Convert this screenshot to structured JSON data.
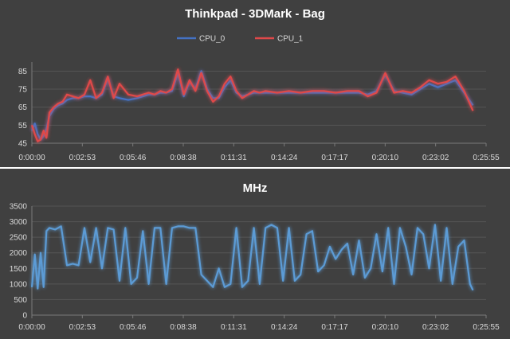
{
  "chart_data": [
    {
      "type": "line",
      "title": "Thinkpad - 3DMark - Bag",
      "xlabel": "",
      "ylabel": "",
      "ylim": [
        45,
        90
      ],
      "yticks": [
        "45",
        "55",
        "65",
        "75",
        "85"
      ],
      "xticks": [
        "0:00:00",
        "0:02:53",
        "0:05:46",
        "0:08:38",
        "0:11:31",
        "0:14:24",
        "0:17:17",
        "0:20:10",
        "0:23:02",
        "0:25:55"
      ],
      "legend": "top-center",
      "grid": true,
      "x": [
        0,
        10,
        20,
        30,
        40,
        50,
        60,
        75,
        90,
        105,
        120,
        140,
        160,
        180,
        200,
        220,
        240,
        260,
        280,
        300,
        330,
        360,
        400,
        420,
        440,
        460,
        480,
        500,
        520,
        540,
        560,
        580,
        600,
        620,
        640,
        660,
        680,
        700,
        720,
        740,
        760,
        780,
        800,
        840,
        880,
        920,
        960,
        1000,
        1040,
        1080,
        1120,
        1150,
        1180,
        1210,
        1240,
        1270,
        1300,
        1330,
        1360,
        1390,
        1420,
        1450,
        1480,
        1510
      ],
      "series": [
        {
          "name": "CPU_0",
          "color": "#4472c4",
          "values": [
            52,
            56,
            50,
            47,
            49,
            53,
            60,
            64,
            66,
            67,
            69,
            70,
            70,
            71,
            71,
            70,
            72,
            81,
            71,
            70,
            69,
            70,
            72,
            72,
            73,
            73,
            74,
            84,
            71,
            79,
            75,
            85,
            75,
            70,
            70,
            76,
            80,
            73,
            71,
            72,
            73,
            73,
            73,
            73,
            73,
            73,
            73,
            73,
            73,
            73,
            73,
            72,
            74,
            83,
            74,
            73,
            72,
            75,
            78,
            76,
            78,
            80,
            73,
            66
          ]
        },
        {
          "name": "CPU_1",
          "color": "#e0494a",
          "values": [
            55,
            50,
            46,
            47,
            52,
            48,
            62,
            65,
            67,
            68,
            72,
            71,
            70,
            72,
            80,
            70,
            73,
            82,
            70,
            78,
            72,
            71,
            73,
            72,
            74,
            73,
            75,
            86,
            72,
            80,
            74,
            84,
            74,
            68,
            71,
            78,
            82,
            74,
            70,
            72,
            74,
            73,
            74,
            73,
            74,
            73,
            74,
            74,
            73,
            74,
            74,
            71,
            73,
            84,
            73,
            74,
            73,
            76,
            80,
            78,
            79,
            82,
            74,
            63
          ]
        }
      ]
    },
    {
      "type": "line",
      "title": "MHz",
      "xlabel": "",
      "ylabel": "",
      "ylim": [
        0,
        3500
      ],
      "yticks": [
        "0",
        "500",
        "1000",
        "1500",
        "2000",
        "2500",
        "3000",
        "3500"
      ],
      "xticks": [
        "0:00:00",
        "0:02:53",
        "0:05:46",
        "0:08:38",
        "0:11:31",
        "0:14:24",
        "0:17:17",
        "0:20:10",
        "0:23:02",
        "0:25:55"
      ],
      "legend": "none",
      "grid": true,
      "x": [
        0,
        10,
        20,
        30,
        40,
        50,
        60,
        80,
        100,
        120,
        140,
        160,
        180,
        200,
        220,
        240,
        260,
        280,
        300,
        320,
        340,
        360,
        380,
        400,
        420,
        440,
        460,
        480,
        500,
        520,
        540,
        560,
        580,
        600,
        620,
        640,
        660,
        680,
        700,
        720,
        740,
        760,
        780,
        800,
        820,
        840,
        860,
        880,
        900,
        920,
        940,
        960,
        980,
        1000,
        1020,
        1040,
        1060,
        1080,
        1100,
        1120,
        1140,
        1160,
        1180,
        1200,
        1220,
        1240,
        1260,
        1280,
        1300,
        1320,
        1340,
        1360,
        1380,
        1400,
        1420,
        1440,
        1460,
        1480,
        1500,
        1510
      ],
      "series": [
        {
          "name": "",
          "color": "#5b9bd5",
          "values": [
            900,
            1950,
            850,
            2000,
            900,
            2700,
            2800,
            2750,
            2850,
            1600,
            1650,
            1600,
            2800,
            1700,
            2800,
            1500,
            2800,
            2750,
            1100,
            2800,
            1000,
            1200,
            2700,
            1000,
            2800,
            2800,
            1000,
            2800,
            2850,
            2850,
            2800,
            2800,
            1300,
            1100,
            900,
            1500,
            900,
            1000,
            2800,
            900,
            1100,
            2800,
            1000,
            2800,
            2900,
            2800,
            1100,
            2800,
            1100,
            1300,
            2600,
            2700,
            1400,
            1600,
            2200,
            1800,
            2100,
            2300,
            1300,
            2400,
            1200,
            1500,
            2600,
            1400,
            2800,
            1000,
            2800,
            2200,
            1300,
            2800,
            2600,
            1500,
            2900,
            1100,
            2800,
            1000,
            2200,
            2400,
            1000,
            800
          ]
        }
      ]
    }
  ]
}
